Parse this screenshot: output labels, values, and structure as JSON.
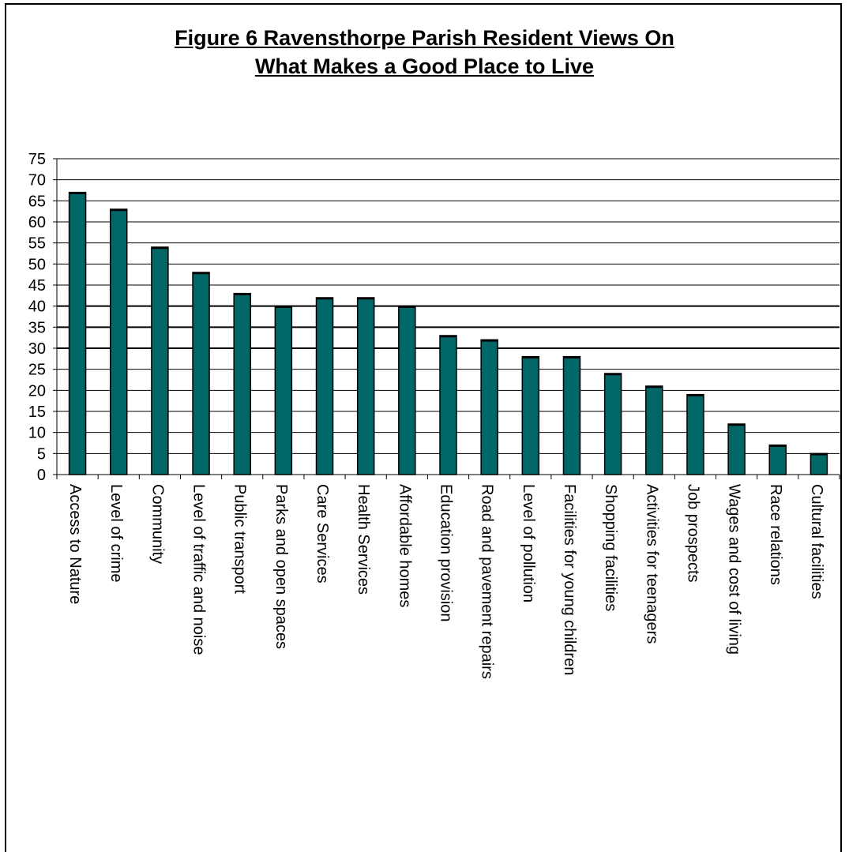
{
  "chart_data": {
    "type": "bar",
    "title_line1": "Figure 6 Ravensthorpe Parish Resident Views On",
    "title_line2": "What  Makes a Good Place to Live",
    "xlabel": "",
    "ylabel": "",
    "ylim": [
      0,
      75
    ],
    "yticks": [
      0,
      5,
      10,
      15,
      20,
      25,
      30,
      35,
      40,
      45,
      50,
      55,
      60,
      65,
      70,
      75
    ],
    "grid": true,
    "legend": "none",
    "bar_color": "#006666",
    "categories": [
      "Access to Nature",
      "Level of crime",
      "Community",
      "Level of traffic and noise",
      "Public transport",
      "Parks and open spaces",
      "Care Services",
      "Health Services",
      "Affordable homes",
      "Education provision",
      "Road and pavement repairs",
      "Level of pollution",
      "Facilities for young children",
      "Shopping facilities",
      "Activities for teenagers",
      "Job prospects",
      "Wages and cost of living",
      "Race relations",
      "Cultural facilities"
    ],
    "values": [
      67,
      63,
      54,
      48,
      43,
      40,
      42,
      42,
      40,
      33,
      32,
      28,
      28,
      24,
      21,
      19,
      12,
      7,
      5
    ]
  }
}
